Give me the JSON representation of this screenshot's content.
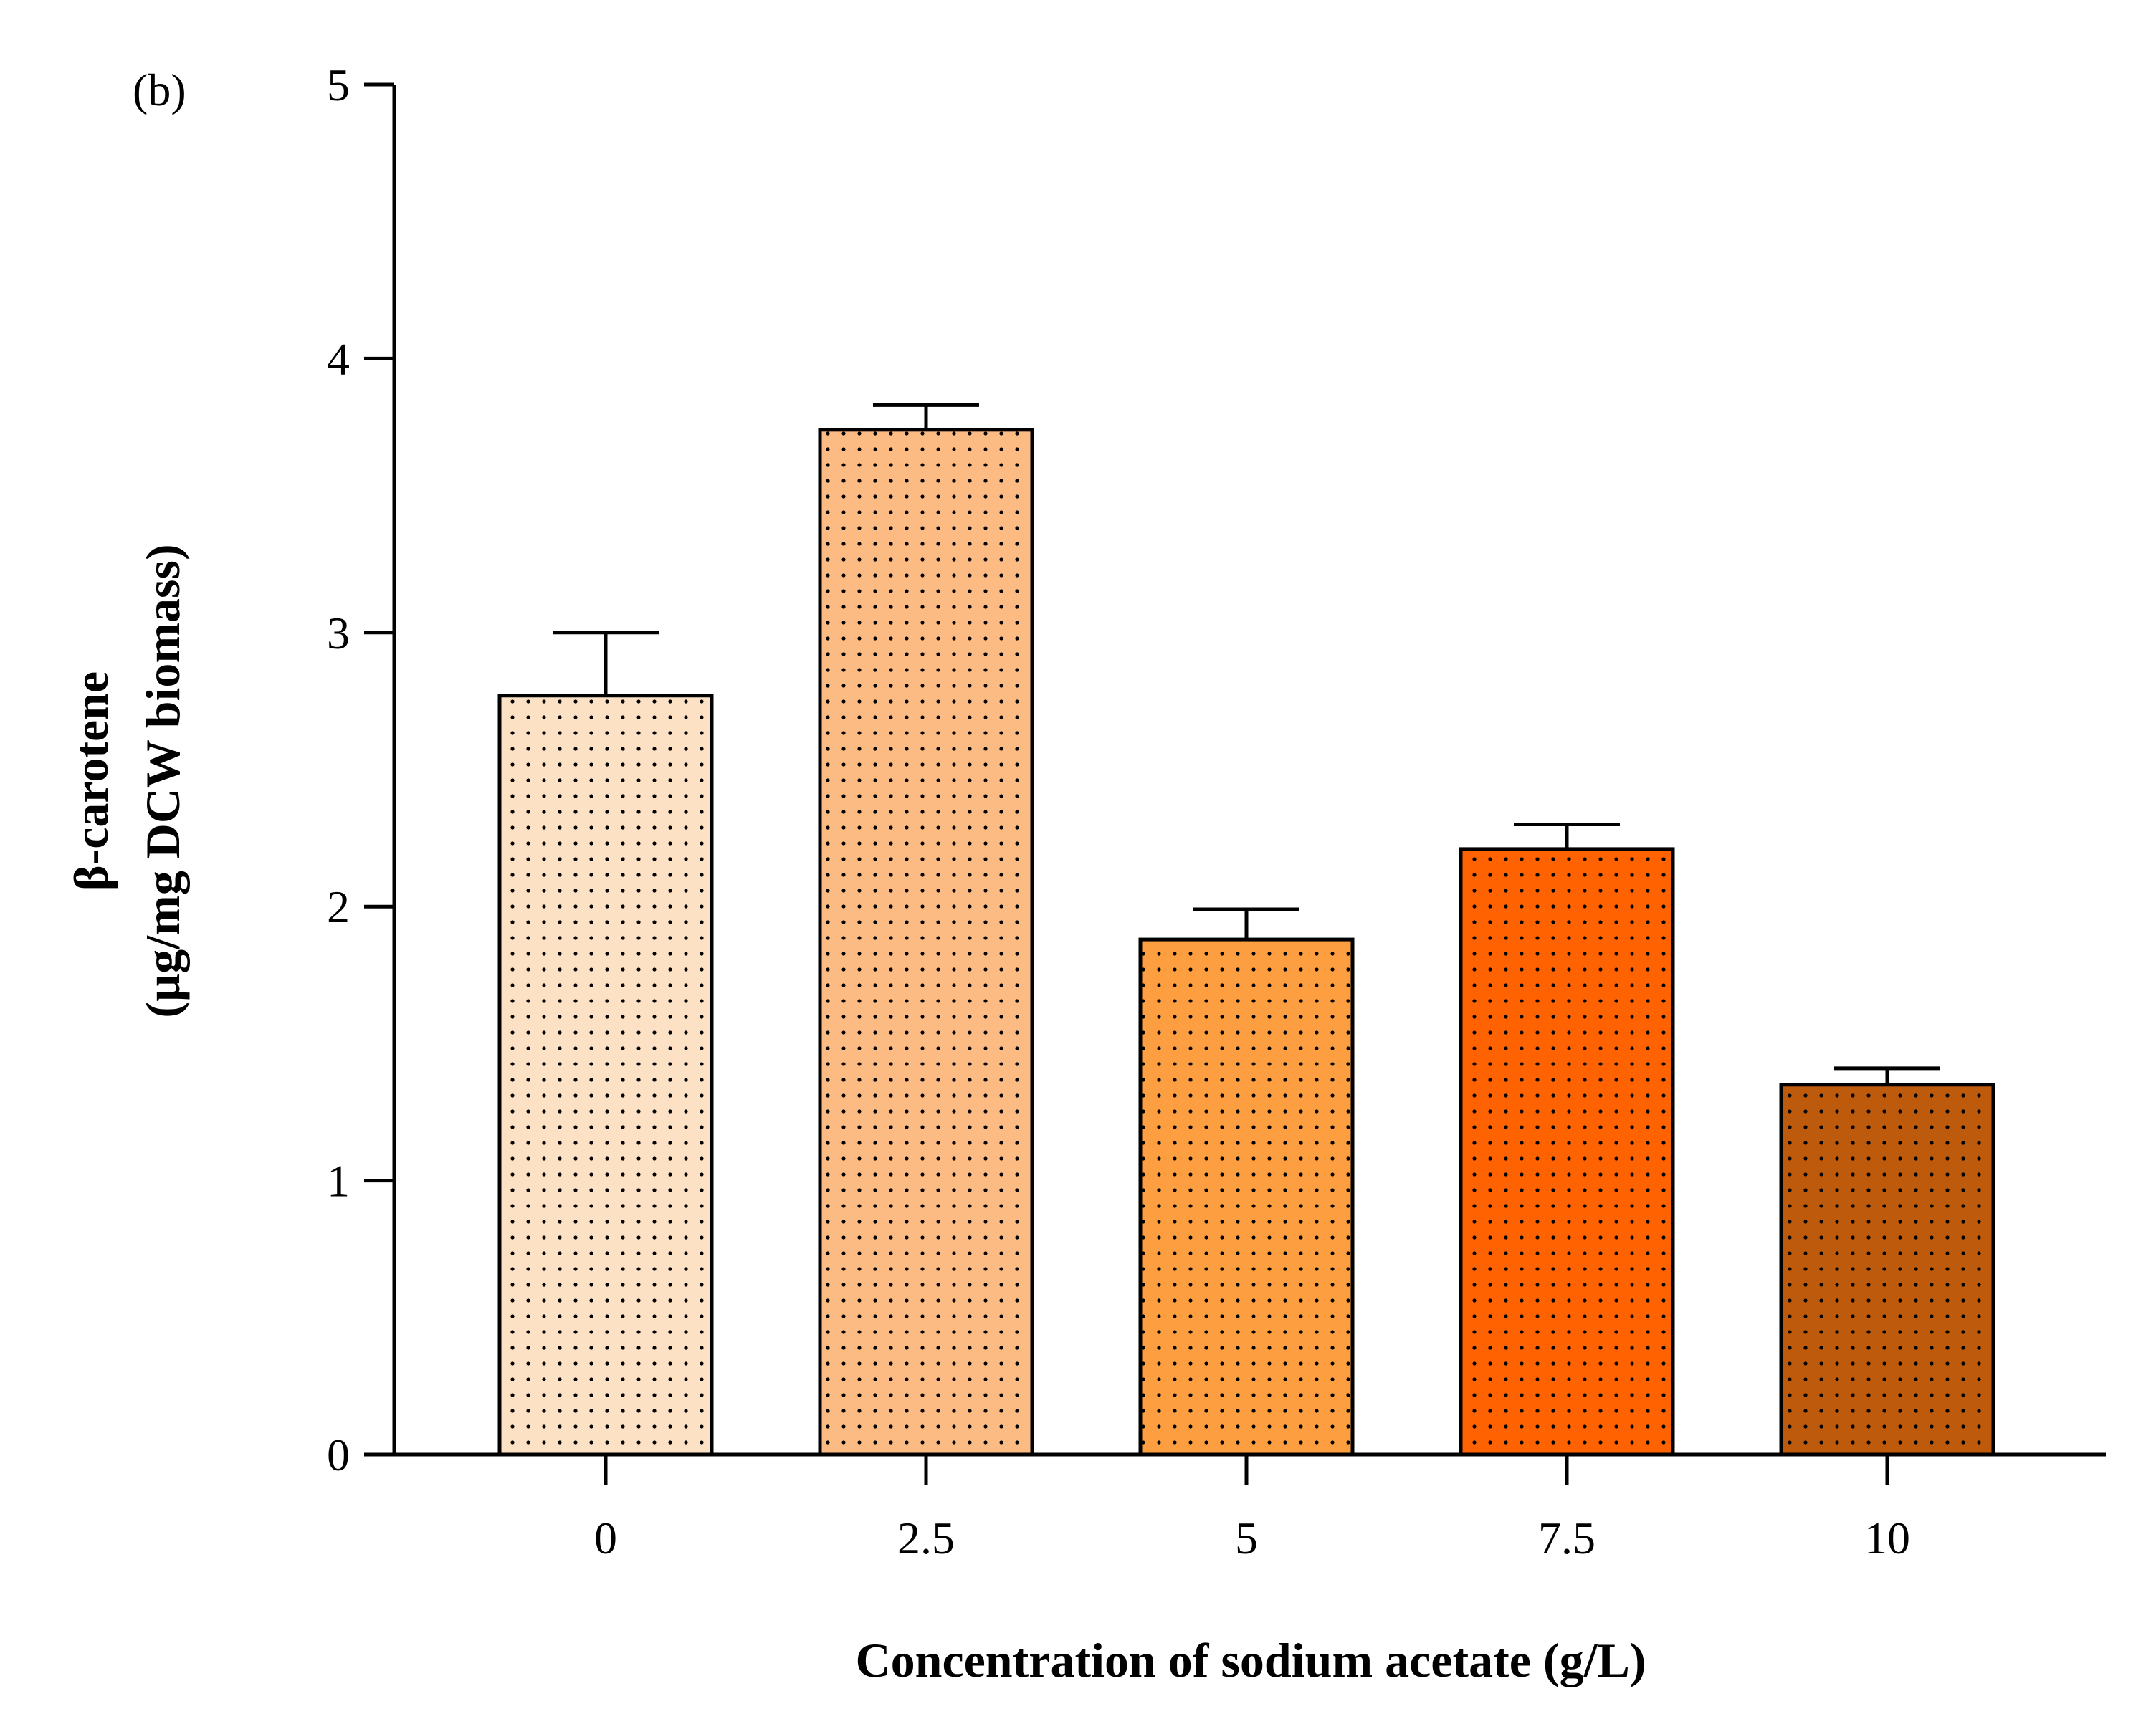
{
  "panel_label": "(b)",
  "chart_data": {
    "type": "bar",
    "categories": [
      "0",
      "2.5",
      "5",
      "7.5",
      "10"
    ],
    "values": [
      2.77,
      3.74,
      1.88,
      2.21,
      1.35
    ],
    "errors": [
      0.23,
      0.09,
      0.11,
      0.09,
      0.06
    ],
    "colors": [
      "#fde1c4",
      "#fdbb84",
      "#fd9f40",
      "#ff6200",
      "#bd5a0b"
    ],
    "title": "",
    "xlabel": "Concentration of sodium acetate (g/L)",
    "ylabel_line1": "β-carotene",
    "ylabel_line2": "(µg/mg DCW biomass)",
    "ylim": [
      0,
      5
    ],
    "yticks": [
      "0",
      "1",
      "2",
      "3",
      "4",
      "5"
    ],
    "grid": false,
    "fill_pattern": "dotted"
  }
}
